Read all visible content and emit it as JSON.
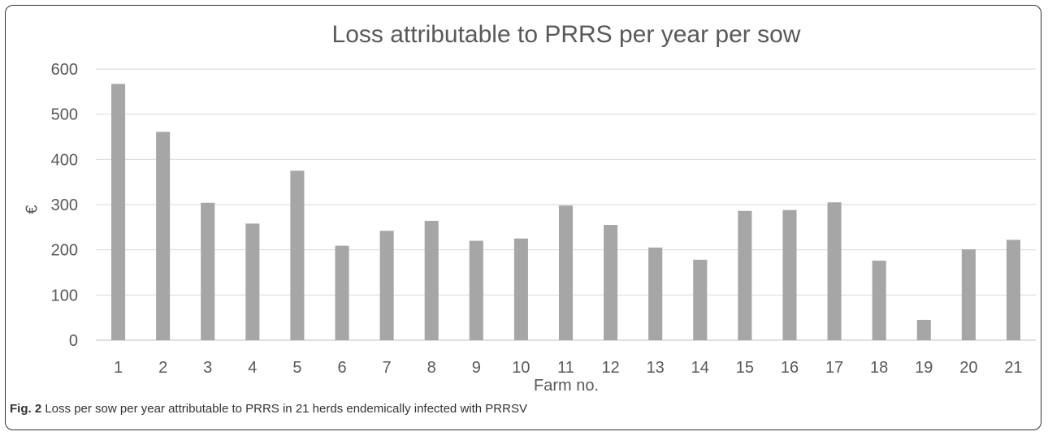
{
  "chart_data": {
    "type": "bar",
    "title": "Loss attributable to PRRS per year per sow",
    "xlabel": "Farm no.",
    "ylabel": "€",
    "ylim": [
      0,
      600
    ],
    "yticks": [
      0,
      100,
      200,
      300,
      400,
      500,
      600
    ],
    "grid": true,
    "legend": "none",
    "bar_color": "#a6a6a6",
    "categories": [
      "1",
      "2",
      "3",
      "4",
      "5",
      "6",
      "7",
      "8",
      "9",
      "10",
      "11",
      "12",
      "13",
      "14",
      "15",
      "16",
      "17",
      "18",
      "19",
      "20",
      "21"
    ],
    "values": [
      567,
      461,
      304,
      258,
      375,
      209,
      242,
      264,
      220,
      225,
      298,
      255,
      205,
      178,
      286,
      288,
      305,
      176,
      45,
      201,
      222
    ]
  },
  "caption": {
    "label": "Fig. 2",
    "text": " Loss per sow per year attributable to PRRS in 21 herds endemically infected with PRRSV"
  }
}
